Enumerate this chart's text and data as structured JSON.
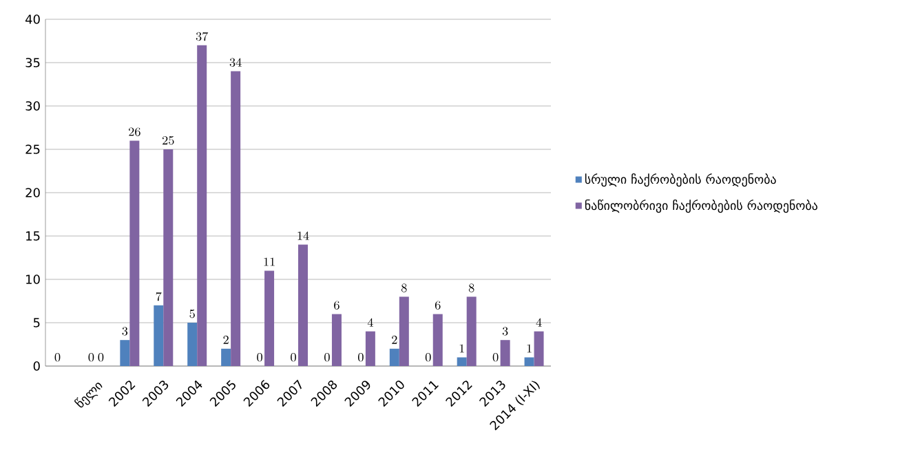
{
  "chart_data": {
    "type": "bar",
    "categories": [
      null,
      "წელი",
      "2002",
      "2003",
      "2004",
      "2005",
      "2006",
      "2007",
      "2008",
      "2009",
      "2010",
      "2011",
      "2012",
      "2013",
      "2014 (I-XI)"
    ],
    "series": [
      {
        "name": "სრული ჩაქრობების რაოდენობა",
        "color": "#4f81bd",
        "values": [
          0,
          0,
          3,
          7,
          5,
          2,
          0,
          0,
          0,
          0,
          2,
          0,
          1,
          0,
          1
        ]
      },
      {
        "name": "ნაწილობრივი ჩაქრობების რაოდენობა",
        "color": "#8064a2",
        "values": [
          null,
          0,
          26,
          25,
          37,
          34,
          11,
          14,
          6,
          4,
          8,
          6,
          8,
          3,
          4
        ]
      }
    ],
    "ylim": [
      0,
      40
    ],
    "yticks": [
      0,
      5,
      10,
      15,
      20,
      25,
      30,
      35,
      40
    ],
    "grid": "y",
    "legend": "right",
    "data_labels": true
  }
}
